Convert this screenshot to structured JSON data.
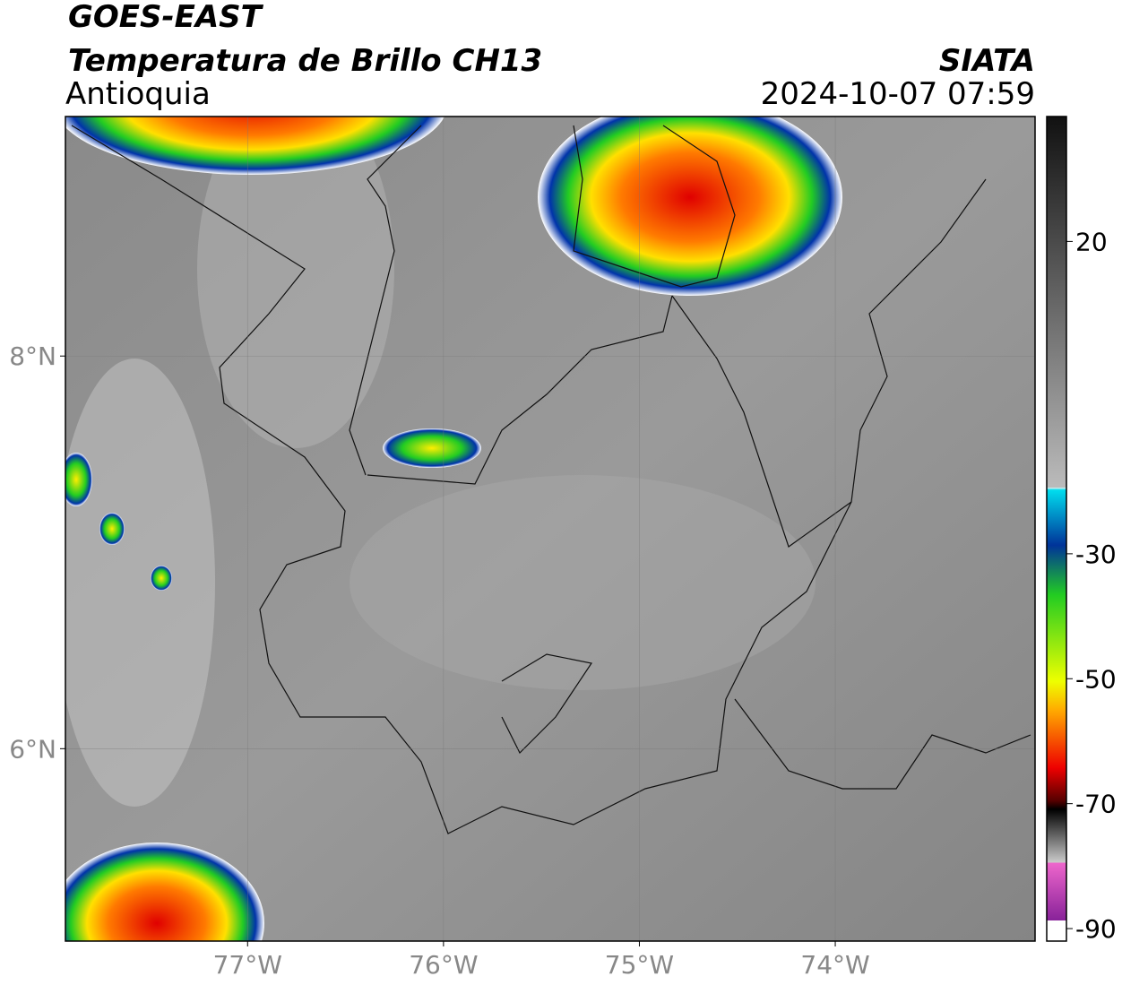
{
  "header": {
    "title": "GOES-EAST",
    "subtitle": "Temperatura de Brillo CH13",
    "region": "Antioquia",
    "source": "SIATA",
    "datetime": "2024-10-07 07:59"
  },
  "map": {
    "xlim": [
      -77.93,
      -72.98
    ],
    "ylim": [
      5.02,
      9.22
    ],
    "xticks": [
      {
        "value": -77,
        "label": "77°W"
      },
      {
        "value": -76,
        "label": "76°W"
      },
      {
        "value": -75,
        "label": "75°W"
      },
      {
        "value": -74,
        "label": "74°W"
      }
    ],
    "yticks": [
      {
        "value": 8,
        "label": "8°N"
      },
      {
        "value": 6,
        "label": "6°N"
      }
    ],
    "grid": true
  },
  "colorbar": {
    "lim": [
      -92,
      40
    ],
    "ticks": [
      20,
      -30,
      -50,
      -70,
      -90
    ]
  }
}
